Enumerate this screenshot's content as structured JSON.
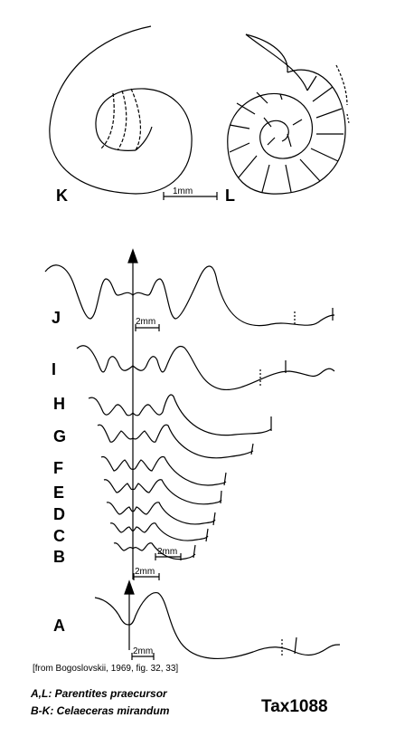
{
  "panel_labels": {
    "K": "K",
    "L": "L",
    "J": "J",
    "I": "I",
    "H": "H",
    "G": "G",
    "F": "F",
    "E": "E",
    "D": "D",
    "C": "C",
    "B": "B",
    "A": "A"
  },
  "scale_bars": {
    "shell": "1mm",
    "j": "2mm",
    "b": "2mm",
    "bottom_mid": "2mm",
    "a": "2mm"
  },
  "source_note": "[from Bogoslovskii, 1969, fig. 32, 33]",
  "legend": {
    "line1": "A,L: Parentites praecursor",
    "line2": "B-K: Celaeceras mirandum"
  },
  "taxon_id": "Tax1088"
}
